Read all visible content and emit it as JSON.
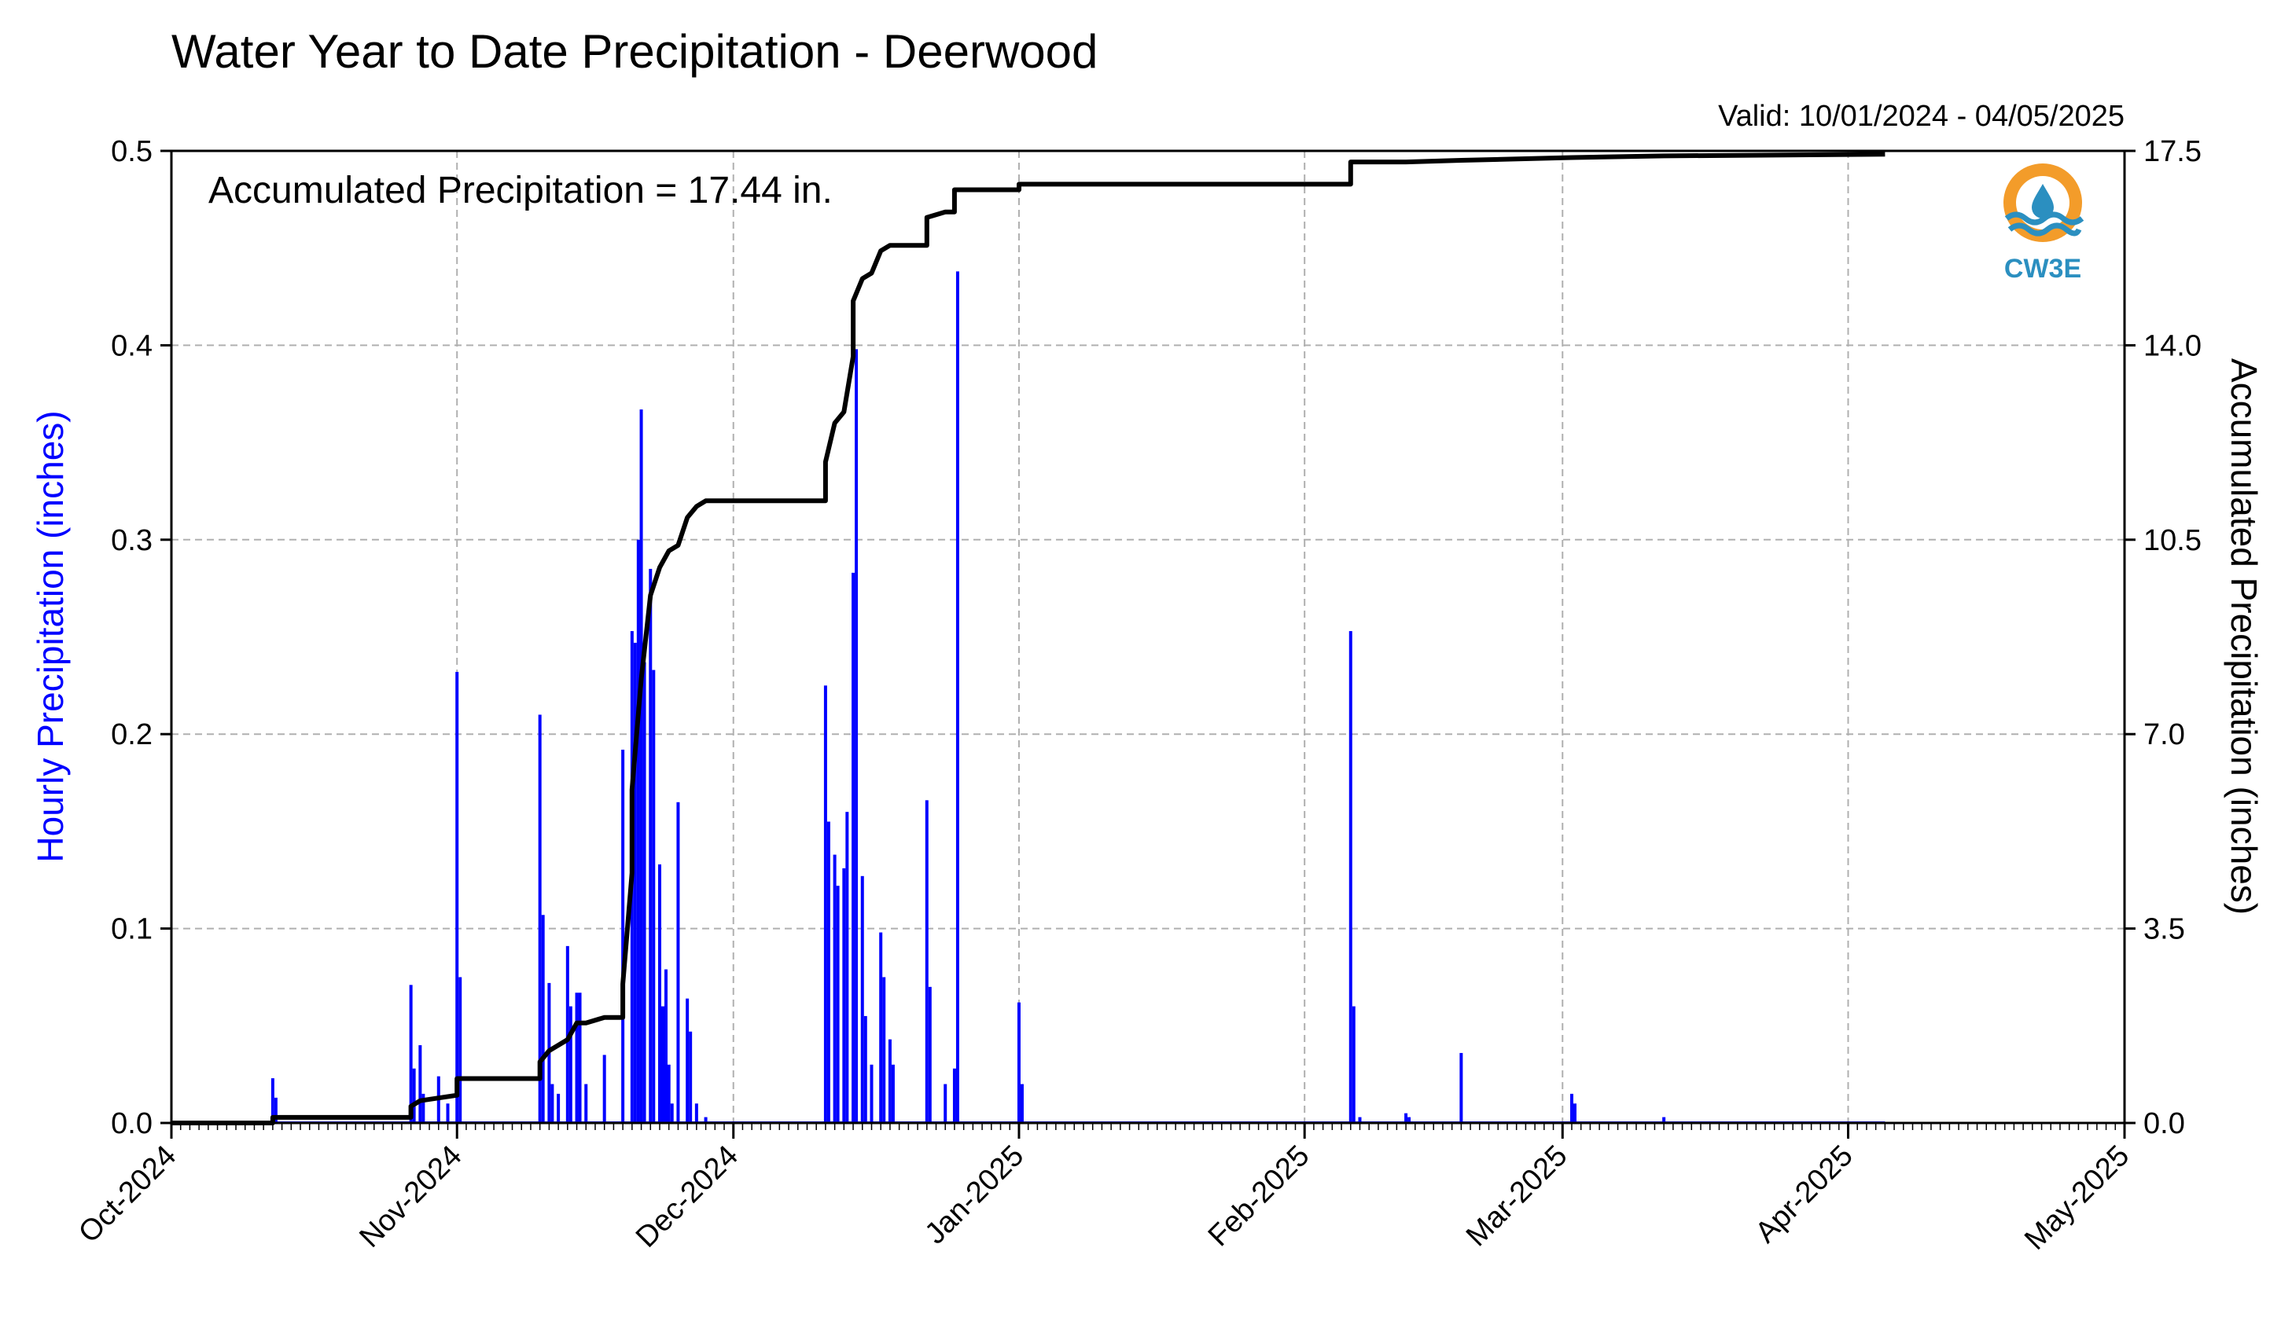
{
  "chart_data": {
    "type": "bar",
    "title": "Water Year to Date Precipitation - Deerwood",
    "subtitle": "Valid: 10/01/2024 - 04/05/2025",
    "annotation": "Accumulated Precipitation = 17.44 in.",
    "ylabel": "Hourly Precipitation (inches)",
    "ylabel_right": "Accumulated Precipitation (inches)",
    "xlim": [
      "2024-10-01",
      "2025-05-01"
    ],
    "ylim": [
      0,
      0.5
    ],
    "ylim_right": [
      0,
      17.5
    ],
    "x_ticks": [
      "Oct-2024",
      "Nov-2024",
      "Dec-2024",
      "Jan-2025",
      "Feb-2025",
      "Mar-2025",
      "Apr-2025",
      "May-2025"
    ],
    "y_ticks": [
      "0.0",
      "0.1",
      "0.2",
      "0.3",
      "0.4",
      "0.5"
    ],
    "y_ticks_right": [
      "0.0",
      "3.5",
      "7.0",
      "10.5",
      "14.0",
      "17.5"
    ],
    "grid": true,
    "logo": "CW3E",
    "series": [
      {
        "type": "bar",
        "color": "#0000ff",
        "points": [
          [
            "2024-10-12",
            0.023
          ],
          [
            "2024-10-12",
            0.013
          ],
          [
            "2024-10-27",
            0.071
          ],
          [
            "2024-10-27",
            0.028
          ],
          [
            "2024-10-28",
            0.04
          ],
          [
            "2024-10-28",
            0.015
          ],
          [
            "2024-10-30",
            0.024
          ],
          [
            "2024-10-31",
            0.01
          ],
          [
            "2024-11-01",
            0.232
          ],
          [
            "2024-11-01",
            0.075
          ],
          [
            "2024-11-10",
            0.21
          ],
          [
            "2024-11-10",
            0.107
          ],
          [
            "2024-11-11",
            0.072
          ],
          [
            "2024-11-11",
            0.02
          ],
          [
            "2024-11-12",
            0.015
          ],
          [
            "2024-11-13",
            0.091
          ],
          [
            "2024-11-13",
            0.06
          ],
          [
            "2024-11-14",
            0.067
          ],
          [
            "2024-11-14",
            0.067
          ],
          [
            "2024-11-15",
            0.02
          ],
          [
            "2024-11-17",
            0.035
          ],
          [
            "2024-11-19",
            0.192
          ],
          [
            "2024-11-20",
            0.253
          ],
          [
            "2024-11-20",
            0.247
          ],
          [
            "2024-11-20",
            0.3
          ],
          [
            "2024-11-21",
            0.367
          ],
          [
            "2024-11-21",
            0.237
          ],
          [
            "2024-11-22",
            0.285
          ],
          [
            "2024-11-22",
            0.233
          ],
          [
            "2024-11-23",
            0.133
          ],
          [
            "2024-11-23",
            0.06
          ],
          [
            "2024-11-23",
            0.079
          ],
          [
            "2024-11-24",
            0.03
          ],
          [
            "2024-11-24",
            0.01
          ],
          [
            "2024-11-25",
            0.165
          ],
          [
            "2024-11-26",
            0.064
          ],
          [
            "2024-11-26",
            0.047
          ],
          [
            "2024-11-27",
            0.01
          ],
          [
            "2024-11-28",
            0.003
          ],
          [
            "2024-12-11",
            0.225
          ],
          [
            "2024-12-11",
            0.155
          ],
          [
            "2024-12-12",
            0.138
          ],
          [
            "2024-12-12",
            0.122
          ],
          [
            "2024-12-13",
            0.131
          ],
          [
            "2024-12-13",
            0.16
          ],
          [
            "2024-12-14",
            0.283
          ],
          [
            "2024-12-14",
            0.398
          ],
          [
            "2024-12-15",
            0.127
          ],
          [
            "2024-12-15",
            0.055
          ],
          [
            "2024-12-16",
            0.03
          ],
          [
            "2024-12-17",
            0.098
          ],
          [
            "2024-12-17",
            0.075
          ],
          [
            "2024-12-18",
            0.043
          ],
          [
            "2024-12-18",
            0.03
          ],
          [
            "2024-12-22",
            0.166
          ],
          [
            "2024-12-22",
            0.07
          ],
          [
            "2024-12-24",
            0.02
          ],
          [
            "2024-12-25",
            0.028
          ],
          [
            "2024-12-25",
            0.438
          ],
          [
            "2025-01-01",
            0.062
          ],
          [
            "2025-01-01",
            0.02
          ],
          [
            "2025-02-06",
            0.253
          ],
          [
            "2025-02-06",
            0.06
          ],
          [
            "2025-02-07",
            0.003
          ],
          [
            "2025-02-12",
            0.005
          ],
          [
            "2025-02-12",
            0.003
          ],
          [
            "2025-02-18",
            0.036
          ],
          [
            "2025-03-02",
            0.015
          ],
          [
            "2025-03-02",
            0.01
          ],
          [
            "2025-03-12",
            0.003
          ]
        ]
      },
      {
        "type": "line",
        "color": "#000000",
        "points": [
          [
            "2024-10-01",
            0.0
          ],
          [
            "2024-10-12",
            0.0
          ],
          [
            "2024-10-12",
            0.1
          ],
          [
            "2024-10-27",
            0.1
          ],
          [
            "2024-10-27",
            0.3
          ],
          [
            "2024-10-28",
            0.4
          ],
          [
            "2024-10-30",
            0.45
          ],
          [
            "2024-11-01",
            0.5
          ],
          [
            "2024-11-01",
            0.8
          ],
          [
            "2024-11-10",
            0.8
          ],
          [
            "2024-11-10",
            1.1
          ],
          [
            "2024-11-11",
            1.3
          ],
          [
            "2024-11-13",
            1.5
          ],
          [
            "2024-11-14",
            1.8
          ],
          [
            "2024-11-15",
            1.8
          ],
          [
            "2024-11-17",
            1.9
          ],
          [
            "2024-11-19",
            1.9
          ],
          [
            "2024-11-19",
            2.5
          ],
          [
            "2024-11-20",
            4.5
          ],
          [
            "2024-11-20",
            6.0
          ],
          [
            "2024-11-21",
            8.0
          ],
          [
            "2024-11-22",
            9.5
          ],
          [
            "2024-11-23",
            10.0
          ],
          [
            "2024-11-24",
            10.3
          ],
          [
            "2024-11-25",
            10.4
          ],
          [
            "2024-11-26",
            10.9
          ],
          [
            "2024-11-27",
            11.1
          ],
          [
            "2024-11-28",
            11.2
          ],
          [
            "2024-12-11",
            11.2
          ],
          [
            "2024-12-11",
            11.9
          ],
          [
            "2024-12-12",
            12.6
          ],
          [
            "2024-12-13",
            12.8
          ],
          [
            "2024-12-14",
            13.8
          ],
          [
            "2024-12-14",
            14.8
          ],
          [
            "2024-12-15",
            15.2
          ],
          [
            "2024-12-16",
            15.3
          ],
          [
            "2024-12-17",
            15.7
          ],
          [
            "2024-12-18",
            15.8
          ],
          [
            "2024-12-22",
            15.8
          ],
          [
            "2024-12-22",
            16.3
          ],
          [
            "2024-12-24",
            16.4
          ],
          [
            "2024-12-25",
            16.4
          ],
          [
            "2024-12-25",
            16.8
          ],
          [
            "2025-01-01",
            16.8
          ],
          [
            "2025-01-01",
            16.9
          ],
          [
            "2025-02-06",
            16.9
          ],
          [
            "2025-02-06",
            17.3
          ],
          [
            "2025-02-12",
            17.3
          ],
          [
            "2025-02-18",
            17.33
          ],
          [
            "2025-03-02",
            17.38
          ],
          [
            "2025-03-12",
            17.41
          ],
          [
            "2025-04-05",
            17.44
          ]
        ]
      }
    ]
  }
}
